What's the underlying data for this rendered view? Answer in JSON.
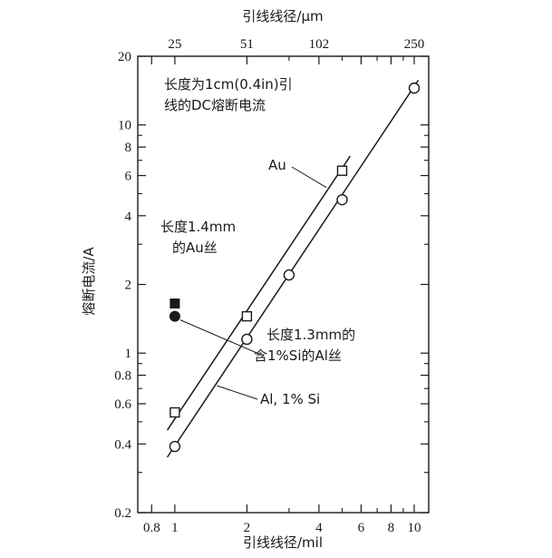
{
  "chart_data": {
    "type": "scatter",
    "title": "",
    "x_scale": "log",
    "y_scale": "log",
    "xlabel": "引线线径/mil",
    "ylabel": "熔断电流/A",
    "x2label": "引线线径/μm",
    "xlim": [
      0.7,
      11.5
    ],
    "ylim": [
      0.2,
      20
    ],
    "grid": false,
    "x_ticks": [
      {
        "value": 0.8,
        "label": "0.8"
      },
      {
        "value": 1,
        "label": "1"
      },
      {
        "value": 2,
        "label": "2"
      },
      {
        "value": 4,
        "label": "4"
      },
      {
        "value": 6,
        "label": "6"
      },
      {
        "value": 8,
        "label": "8"
      },
      {
        "value": 10,
        "label": "10"
      }
    ],
    "x_minor_ticks": [
      3,
      5,
      7,
      9
    ],
    "x2_ticks": [
      {
        "value": 1,
        "label": "25"
      },
      {
        "value": 2,
        "label": "51"
      },
      {
        "value": 4,
        "label": "102"
      },
      {
        "value": 10,
        "label": "250"
      }
    ],
    "y_ticks": [
      {
        "value": 0.2,
        "label": "0.2"
      },
      {
        "value": 0.4,
        "label": "0.4"
      },
      {
        "value": 0.6,
        "label": "0.6"
      },
      {
        "value": 0.8,
        "label": "0.8"
      },
      {
        "value": 1,
        "label": "1"
      },
      {
        "value": 2,
        "label": "2"
      },
      {
        "value": 4,
        "label": "4"
      },
      {
        "value": 6,
        "label": "6"
      },
      {
        "value": 8,
        "label": "8"
      },
      {
        "value": 10,
        "label": "10"
      },
      {
        "value": 20,
        "label": "20"
      }
    ],
    "y_minor_ticks": [
      0.3,
      0.5,
      0.7,
      0.9,
      3,
      5,
      7,
      9
    ],
    "series": [
      {
        "name": "Au",
        "marker": "open-square",
        "x": [
          1,
          2,
          5
        ],
        "y": [
          0.55,
          1.45,
          6.3
        ],
        "fit_line": {
          "x": [
            0.93,
            5.4
          ],
          "y": [
            0.46,
            7.3
          ]
        }
      },
      {
        "name": "Al, 1% Si",
        "marker": "open-circle",
        "x": [
          1,
          2,
          3,
          5,
          10
        ],
        "y": [
          0.39,
          1.15,
          2.2,
          4.7,
          14.5
        ],
        "fit_line": {
          "x": [
            0.93,
            10.4
          ],
          "y": [
            0.35,
            15.7
          ]
        }
      },
      {
        "name": "长度1.4mm的Au丝",
        "marker": "filled-square",
        "x": [
          1
        ],
        "y": [
          1.65
        ]
      },
      {
        "name": "长度1.3mm的含1%Si的Al丝",
        "marker": "filled-circle",
        "x": [
          1
        ],
        "y": [
          1.45
        ]
      }
    ],
    "annotations": [
      {
        "id": "header_line1",
        "text": "长度为1cm(0.4in)引"
      },
      {
        "id": "header_line2",
        "text": "线的DC熔断电流"
      },
      {
        "id": "au_label",
        "text": "Au"
      },
      {
        "id": "au_short_line1",
        "text": "长度1.4mm"
      },
      {
        "id": "au_short_line2",
        "text": "的Au丝"
      },
      {
        "id": "al_short_line1",
        "text": "长度1.3mm的"
      },
      {
        "id": "al_short_line2",
        "text": "含1%Si的Al丝"
      },
      {
        "id": "al_label",
        "text": "Al, 1% Si"
      }
    ]
  }
}
